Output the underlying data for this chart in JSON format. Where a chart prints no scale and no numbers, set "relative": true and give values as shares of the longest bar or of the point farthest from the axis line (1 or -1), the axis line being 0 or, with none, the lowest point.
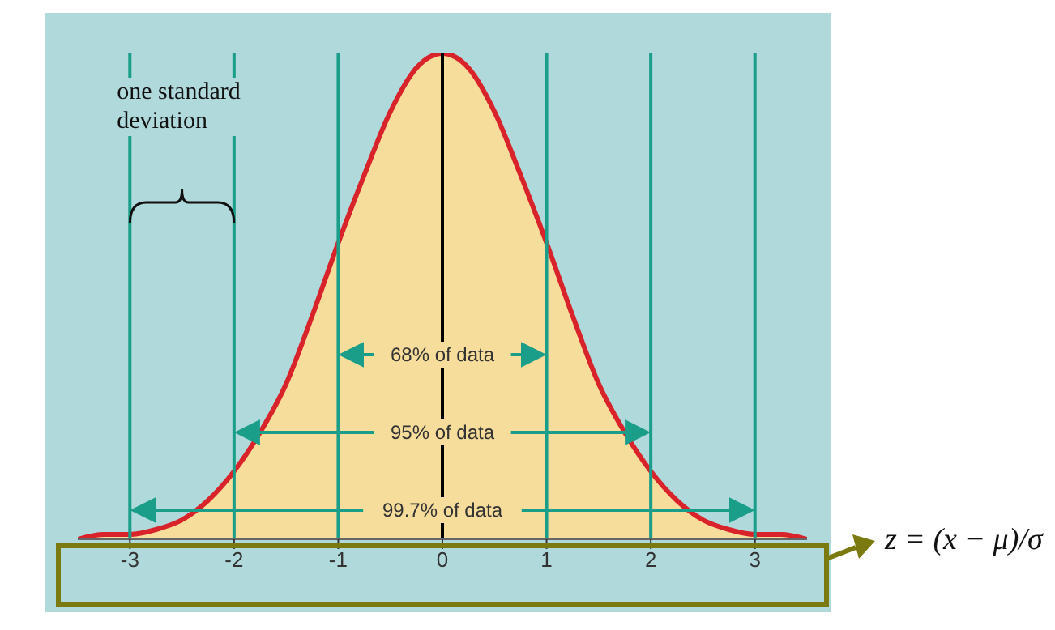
{
  "chart_data": {
    "type": "area",
    "relative": true,
    "color": "#d8232a",
    "x": [
      -3.5,
      -3.25,
      -3,
      -2.75,
      -2.5,
      -2.25,
      -2,
      -1.75,
      -1.5,
      -1.25,
      -1,
      -0.75,
      -0.5,
      -0.25,
      0,
      0.25,
      0.5,
      0.75,
      1,
      1.25,
      1.5,
      1.75,
      2,
      2.25,
      2.5,
      2.75,
      3,
      3.25,
      3.5
    ],
    "values": [
      0,
      0.01,
      0.01,
      0.02,
      0.04,
      0.08,
      0.14,
      0.22,
      0.32,
      0.46,
      0.61,
      0.75,
      0.88,
      0.97,
      1,
      0.97,
      0.88,
      0.75,
      0.61,
      0.46,
      0.32,
      0.22,
      0.14,
      0.08,
      0.04,
      0.02,
      0.01,
      0.01,
      0
    ],
    "xlim": [
      -3.5,
      3.5
    ],
    "xticks": [
      -3,
      -2,
      -1,
      0,
      1,
      2,
      3
    ],
    "tick_labels": "x",
    "ref_lines": [
      {
        "axis": "x",
        "value": -3,
        "color": "#1a9e8a"
      },
      {
        "axis": "x",
        "value": -2,
        "color": "#1a9e8a"
      },
      {
        "axis": "x",
        "value": -1,
        "color": "#1a9e8a"
      },
      {
        "axis": "x",
        "value": 0,
        "color": "#000000"
      },
      {
        "axis": "x",
        "value": 1,
        "color": "#1a9e8a"
      },
      {
        "axis": "x",
        "value": 2,
        "color": "#1a9e8a"
      },
      {
        "axis": "x",
        "value": 3,
        "color": "#1a9e8a"
      }
    ],
    "annotations": [
      "one standard deviation",
      "68% of data",
      "95% of data",
      "99.7% of data",
      "z = (x − μ)/σ"
    ]
  }
}
